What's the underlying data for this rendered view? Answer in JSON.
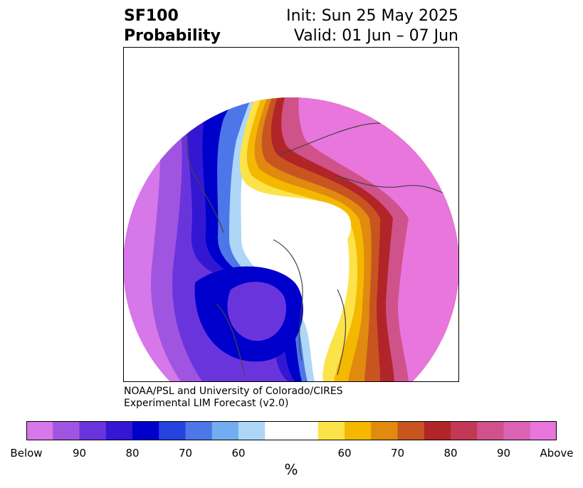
{
  "title": {
    "left_line1": "SF100",
    "left_line2": "Probability",
    "right_line1": "Init: Sun 25 May 2025",
    "right_line2": "Valid: 01 Jun – 07 Jun"
  },
  "credit": {
    "line1": "NOAA/PSL and University of Colorado/CIRES",
    "line2": "Experimental LIM Forecast (v2.0)"
  },
  "colorbar": {
    "unit": "%",
    "colors": [
      "#d677ea",
      "#9f55e0",
      "#6a34dd",
      "#3417d3",
      "#0000cc",
      "#2542de",
      "#4d76e8",
      "#72aeef",
      "#aed7f7",
      "#ffffff",
      "#fde34a",
      "#f5b800",
      "#e08a10",
      "#c85520",
      "#b12529",
      "#c23955",
      "#d0528a",
      "#db63b6",
      "#e876dc"
    ],
    "tick_labels": [
      "Below",
      "90",
      "80",
      "70",
      "60",
      "60",
      "70",
      "80",
      "90",
      "Above"
    ]
  }
}
